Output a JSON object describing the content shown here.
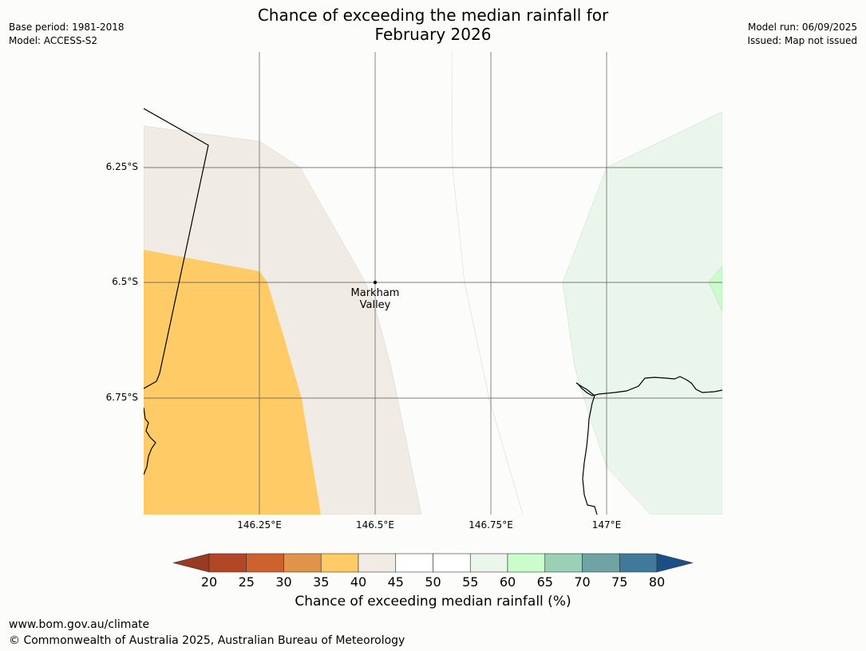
{
  "header": {
    "title_line1": "Chance of exceeding the median rainfall for",
    "title_line2": "February 2026",
    "base_period": "Base period: 1981-2018",
    "model": "Model: ACCESS-S2",
    "model_run": "Model run: 06/09/2025",
    "issued": "Issued: Map not issued"
  },
  "map": {
    "lat_labels": [
      "6.25°S",
      "6.5°S",
      "6.75°S"
    ],
    "lon_labels": [
      "146.25°E",
      "146.5°E",
      "146.75°E",
      "147°E"
    ],
    "place": {
      "line1": "Markham",
      "line2": "Valley"
    },
    "regions": [
      {
        "category": "35-40",
        "color": "#fecb66"
      },
      {
        "category": "40-45",
        "color": "#f1ebe5"
      },
      {
        "category": "55-60",
        "color": "#eaf5eb"
      },
      {
        "category": "60-65",
        "color": "#cbfccb"
      }
    ]
  },
  "colorbar": {
    "ticks": [
      "20",
      "25",
      "30",
      "35",
      "40",
      "45",
      "50",
      "55",
      "60",
      "65",
      "70",
      "75",
      "80"
    ],
    "under_color": "#993a22",
    "over_color": "#1a4f88",
    "colors": [
      "#b14724",
      "#cd622e",
      "#e0944a",
      "#fecb66",
      "#f1ebe5",
      "#ffffff",
      "#ffffff",
      "#eaf5eb",
      "#cbfccb",
      "#9ccfb8",
      "#6ea4a4",
      "#41799a"
    ],
    "label": "Chance of exceeding median rainfall (%)"
  },
  "footer": {
    "url": "www.bom.gov.au/climate",
    "copyright": "© Commonwealth of Australia 2025, Australian Bureau of Meteorology"
  }
}
